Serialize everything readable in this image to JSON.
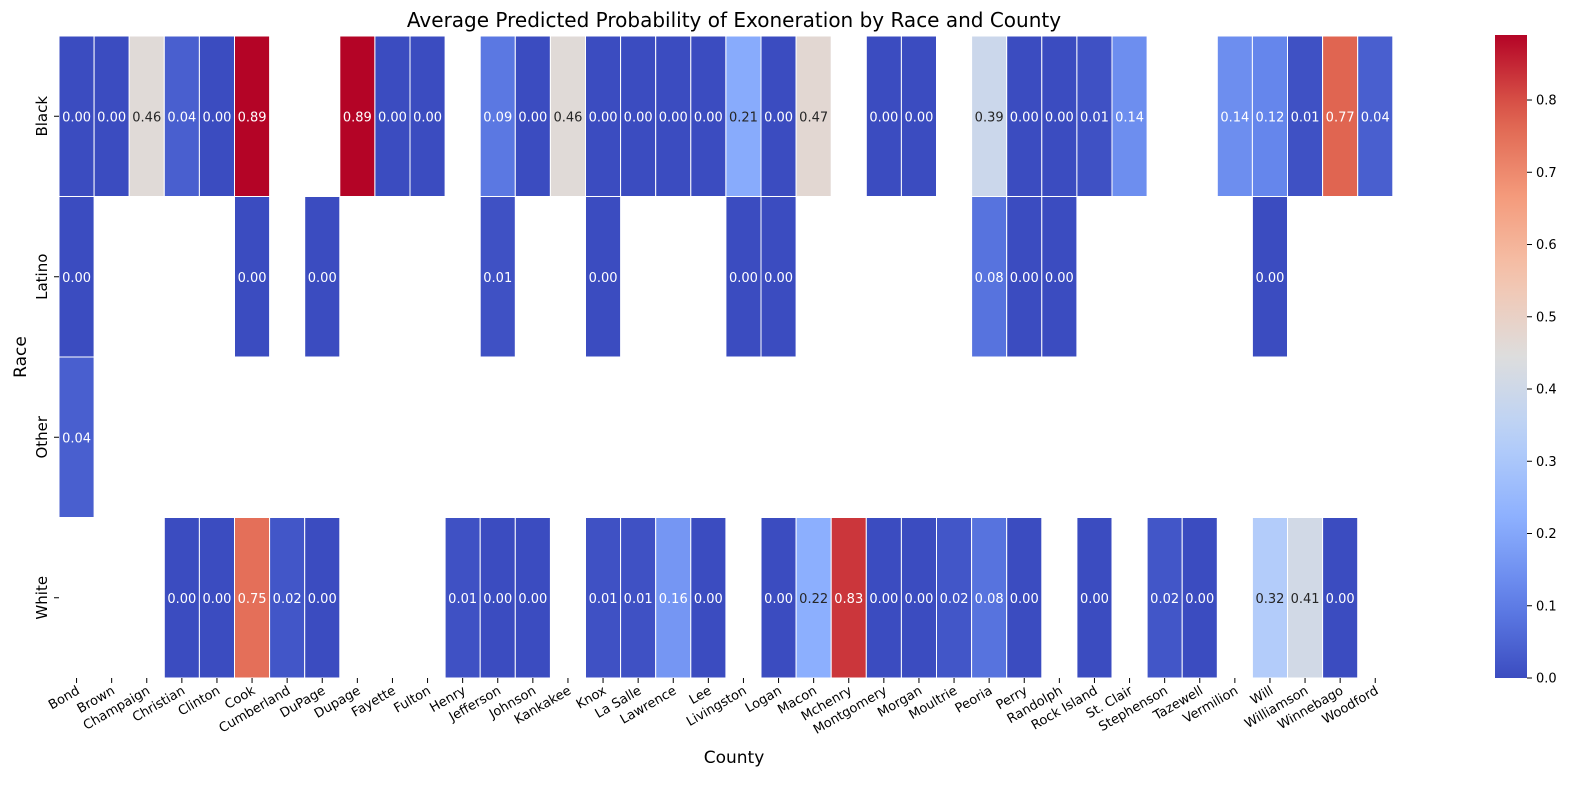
{
  "chart_data": {
    "type": "heatmap",
    "title": "Average Predicted Probability of Exoneration by Race and County",
    "xlabel": "County",
    "ylabel": "Race",
    "x": [
      "Bond",
      "Brown",
      "Champaign",
      "Christian",
      "Clinton",
      "Cook",
      "Cumberland",
      "DuPage",
      "Dupage",
      "Fayette",
      "Fulton",
      "Henry",
      "Jefferson",
      "Johnson",
      "Kankakee",
      "Knox",
      "La Salle",
      "Lawrence",
      "Lee",
      "Livingston",
      "Logan",
      "Macon",
      "Mchenry",
      "Montgomery",
      "Morgan",
      "Moultrie",
      "Peoria",
      "Perry",
      "Randolph",
      "Rock Island",
      "St. Clair",
      "Stephenson",
      "Tazewell",
      "Vermilion",
      "Will",
      "Williamson",
      "Winnebago",
      "Woodford"
    ],
    "y": [
      "Black",
      "Latino",
      "Other",
      "White"
    ],
    "values": [
      [
        0.0,
        0.0,
        0.46,
        0.04,
        0.0,
        0.89,
        null,
        null,
        0.89,
        0.0,
        0.0,
        null,
        0.09,
        0.0,
        0.46,
        0.0,
        0.0,
        0.0,
        0.0,
        0.21,
        0.0,
        0.47,
        null,
        0.0,
        0.0,
        null,
        0.39,
        0.0,
        0.0,
        0.01,
        0.14,
        null,
        null,
        0.14,
        0.12,
        0.01,
        0.77,
        0.04
      ],
      [
        0.0,
        null,
        null,
        null,
        null,
        0.0,
        null,
        0.0,
        null,
        null,
        null,
        null,
        0.01,
        null,
        null,
        0.0,
        null,
        null,
        null,
        0.0,
        0.0,
        null,
        null,
        null,
        null,
        null,
        0.08,
        0.0,
        0.0,
        null,
        null,
        null,
        null,
        null,
        0.0,
        null,
        null,
        null
      ],
      [
        0.04,
        null,
        null,
        null,
        null,
        null,
        null,
        null,
        null,
        null,
        null,
        null,
        null,
        null,
        null,
        null,
        null,
        null,
        null,
        null,
        null,
        null,
        null,
        null,
        null,
        null,
        null,
        null,
        null,
        null,
        null,
        null,
        null,
        null,
        null,
        null,
        null,
        null
      ],
      [
        null,
        null,
        null,
        0.0,
        0.0,
        0.75,
        0.02,
        0.0,
        null,
        null,
        null,
        0.01,
        0.0,
        0.0,
        null,
        0.01,
        0.01,
        0.16,
        0.0,
        null,
        0.0,
        0.22,
        0.83,
        0.0,
        0.0,
        0.02,
        0.08,
        0.0,
        null,
        0.0,
        null,
        0.02,
        0.0,
        null,
        0.32,
        0.41,
        0.0,
        null
      ]
    ],
    "value_format": "2 decimals",
    "colormap": "coolwarm",
    "colorbar": {
      "range": [
        0,
        0.89
      ],
      "ticks": [
        "0.0",
        "0.1",
        "0.2",
        "0.3",
        "0.4",
        "0.5",
        "0.6",
        "0.7",
        "0.8"
      ]
    },
    "grid": false,
    "legend": "colorbar right"
  }
}
